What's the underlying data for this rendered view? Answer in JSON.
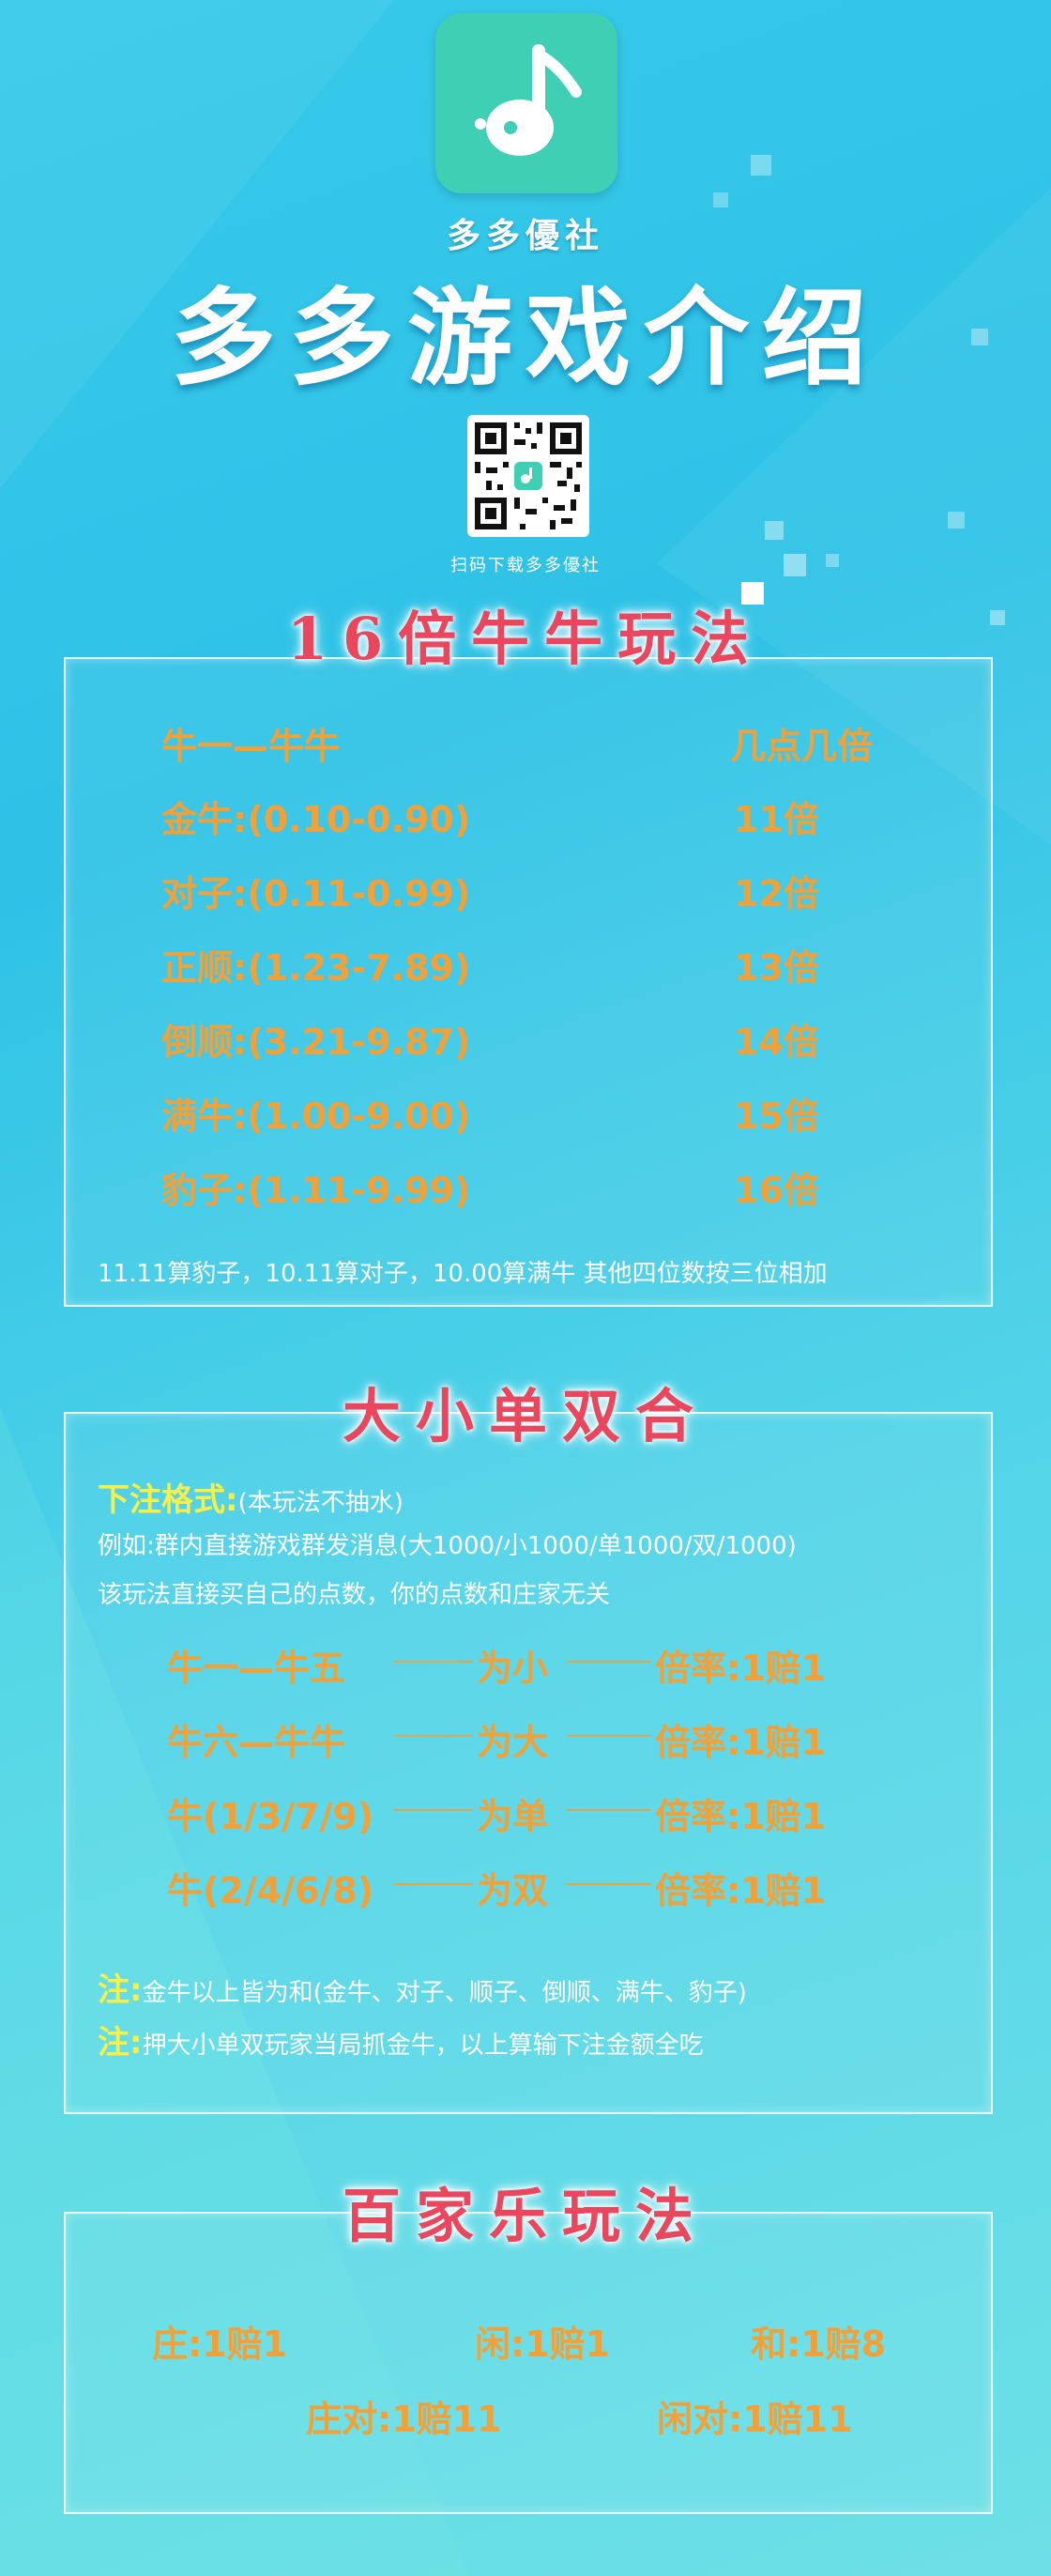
{
  "header": {
    "brand": "多多優社",
    "title": "多多游戏介绍",
    "qr_caption": "扫码下载多多優社"
  },
  "niuniu": {
    "title": "16倍牛牛玩法",
    "col_left": "牛一—牛牛",
    "col_right": "几点几倍",
    "rows": [
      {
        "label": "金牛:(0.10-0.90)",
        "mult": "11倍"
      },
      {
        "label": "对子:(0.11-0.99)",
        "mult": "12倍"
      },
      {
        "label": "正顺:(1.23-7.89)",
        "mult": "13倍"
      },
      {
        "label": "倒顺:(3.21-9.87)",
        "mult": "14倍"
      },
      {
        "label": "满牛:(1.00-9.00)",
        "mult": "15倍"
      },
      {
        "label": "豹子:(1.11-9.99)",
        "mult": "16倍"
      }
    ],
    "note": "11.11算豹子，10.11算对子，10.00算满牛 其他四位数按三位相加"
  },
  "daxiao": {
    "title": "大小单双合",
    "format_label": "下注格式:",
    "format_note": "(本玩法不抽水)",
    "example": "例如:群内直接游戏群发消息(大1000/小1000/单1000/双/1000)",
    "desc": "该玩法直接买自己的点数，你的点数和庄家无关",
    "rows": [
      {
        "a": "牛一—牛五",
        "b": "为小",
        "c": "倍率:1赔1"
      },
      {
        "a": "牛六—牛牛",
        "b": "为大",
        "c": "倍率:1赔1"
      },
      {
        "a": "牛(1/3/7/9)",
        "b": "为单",
        "c": "倍率:1赔1"
      },
      {
        "a": "牛(2/4/6/8)",
        "b": "为双",
        "c": "倍率:1赔1"
      }
    ],
    "note_label": "注:",
    "note1": "金牛以上皆为和(金牛、对子、顺子、倒顺、满牛、豹子)",
    "note2": "押大小单双玩家当局抓金牛，以上算输下注金额全吃"
  },
  "baccarat": {
    "title": "百家乐玩法",
    "items": [
      "庄:1赔1",
      "闲:1赔1",
      "和:1赔8",
      "庄对:1赔11",
      "闲对:1赔11"
    ]
  },
  "colors": {
    "accent_orange": "#f0a13a",
    "title_red": "#e8475e",
    "note_yellow": "#f5f04a",
    "logo_green": "#3ecfb5"
  }
}
